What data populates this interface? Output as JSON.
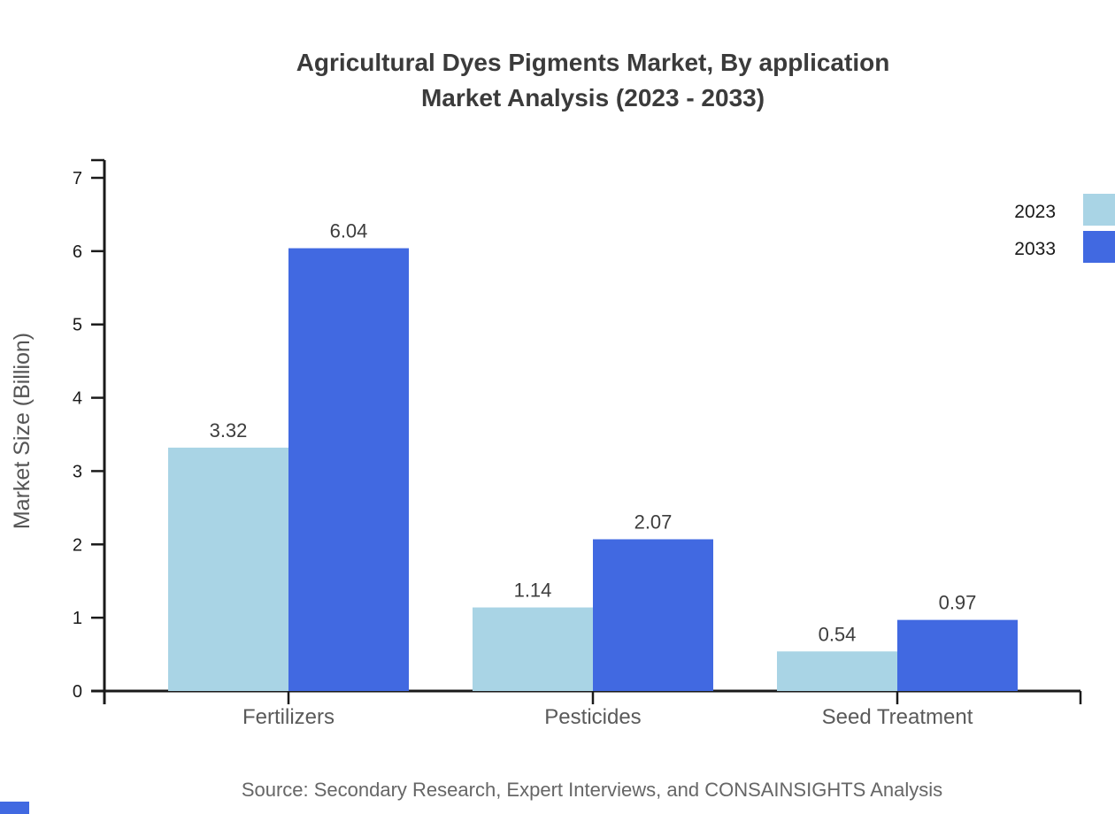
{
  "title": {
    "line1": "Agricultural Dyes Pigments Market, By application",
    "line2": "Market Analysis (2023 - 2033)"
  },
  "source": "Source: Secondary Research, Expert Interviews, and CONSAINSIGHTS Analysis",
  "chart_data": {
    "type": "bar",
    "title": "Agricultural Dyes Pigments Market, By application Market Analysis (2023 - 2033)",
    "categories": [
      "Fertilizers",
      "Pesticides",
      "Seed Treatment"
    ],
    "series": [
      {
        "name": "2023",
        "color": "#a9d4e5",
        "values": [
          3.32,
          1.14,
          0.54
        ]
      },
      {
        "name": "2033",
        "color": "#4169e1",
        "values": [
          6.04,
          2.07,
          0.97
        ]
      }
    ],
    "xlabel": "",
    "ylabel": "Market Size (Billion)",
    "ylim": [
      0,
      7
    ],
    "ytick_step": 1,
    "yticks": [
      0,
      1,
      2,
      3,
      4,
      5,
      6,
      7
    ],
    "grid": false,
    "value_labels": true,
    "legend_position": "top-right"
  },
  "colors": {
    "axis": "#1a1a1a",
    "tick_label": "#1a1a1a",
    "category_label": "#5a5a5a",
    "value_label": "#3d3d3d",
    "title": "#3b3b3b",
    "axis_title": "#555555",
    "source": "#666666",
    "brand_mark": "#4169e1",
    "background": "#ffffff"
  }
}
